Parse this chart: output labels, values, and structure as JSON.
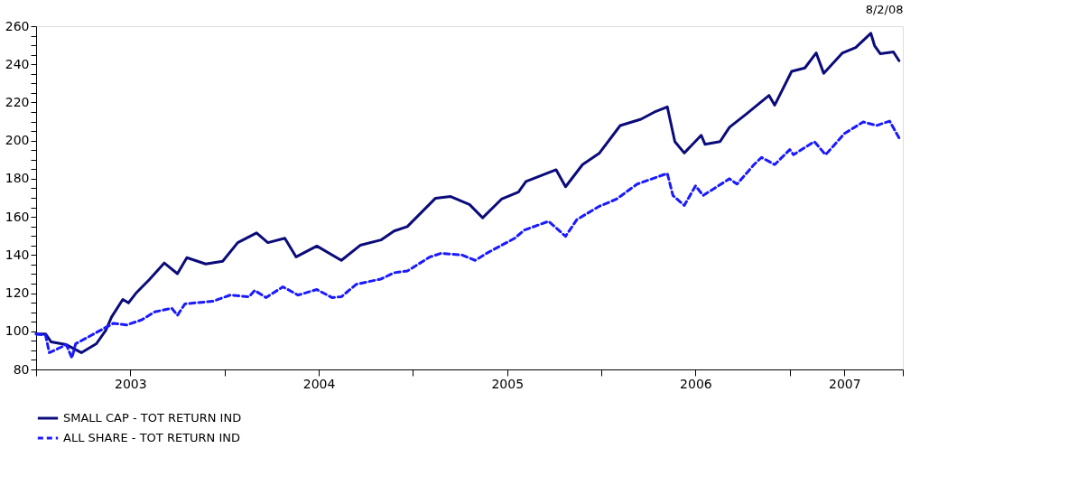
{
  "chart_data": {
    "type": "line",
    "annotations": [
      "8/2/08"
    ],
    "xlim": [
      2003,
      2007.6
    ],
    "xticks": [
      {
        "value": 2003,
        "label": null
      },
      {
        "value": 2003.5,
        "label": "2003"
      },
      {
        "value": 2004,
        "label": null
      },
      {
        "value": 2004.5,
        "label": "2004"
      },
      {
        "value": 2005,
        "label": null
      },
      {
        "value": 2005.5,
        "label": "2005"
      },
      {
        "value": 2006,
        "label": null
      },
      {
        "value": 2006.5,
        "label": "2006"
      },
      {
        "value": 2007,
        "label": null
      },
      {
        "value": 2007.29,
        "label": "2007"
      },
      {
        "value": 2007.6,
        "label": null
      }
    ],
    "ylim": [
      80,
      260
    ],
    "yticks": [
      80,
      {
        "value": 85,
        "label": null
      },
      {
        "value": 90,
        "label": null
      },
      {
        "value": 95,
        "label": null
      },
      100,
      {
        "value": 105,
        "label": null
      },
      {
        "value": 110,
        "label": null
      },
      {
        "value": 115,
        "label": null
      },
      120,
      {
        "value": 125,
        "label": null
      },
      {
        "value": 130,
        "label": null
      },
      {
        "value": 135,
        "label": null
      },
      140,
      {
        "value": 145,
        "label": null
      },
      {
        "value": 150,
        "label": null
      },
      {
        "value": 155,
        "label": null
      },
      160,
      {
        "value": 165,
        "label": null
      },
      {
        "value": 170,
        "label": null
      },
      {
        "value": 175,
        "label": null
      },
      180,
      {
        "value": 185,
        "label": null
      },
      {
        "value": 190,
        "label": null
      },
      {
        "value": 195,
        "label": null
      },
      200,
      {
        "value": 205,
        "label": null
      },
      {
        "value": 210,
        "label": null
      },
      {
        "value": 215,
        "label": null
      },
      220,
      {
        "value": 225,
        "label": null
      },
      {
        "value": 230,
        "label": null
      },
      {
        "value": 235,
        "label": null
      },
      240,
      {
        "value": 245,
        "label": null
      },
      {
        "value": 250,
        "label": null
      },
      {
        "value": 255,
        "label": null
      },
      260
    ],
    "grid": false,
    "legend": "bottom",
    "series": [
      {
        "name": "SMALL CAP - TOT RETURN IND",
        "color": "#0b0b7a",
        "line_style": "solid",
        "x": [
          2003.0,
          2003.05,
          2003.08,
          2003.16,
          2003.24,
          2003.32,
          2003.37,
          2003.4,
          2003.46,
          2003.49,
          2003.53,
          2003.6,
          2003.68,
          2003.75,
          2003.8,
          2003.9,
          2003.99,
          2004.07,
          2004.17,
          2004.23,
          2004.32,
          2004.38,
          2004.49,
          2004.62,
          2004.72,
          2004.83,
          2004.9,
          2004.97,
          2005.12,
          2005.2,
          2005.3,
          2005.37,
          2005.47,
          2005.56,
          2005.6,
          2005.76,
          2005.81,
          2005.9,
          2005.99,
          2006.1,
          2006.21,
          2006.28,
          2006.35,
          2006.39,
          2006.44,
          2006.53,
          2006.55,
          2006.63,
          2006.68,
          2006.77,
          2006.89,
          2006.92,
          2007.01,
          2007.08,
          2007.14,
          2007.18,
          2007.28,
          2007.35,
          2007.43,
          2007.45,
          2007.48,
          2007.55,
          2007.58
        ],
        "values": [
          98.6,
          98.6,
          94.4,
          93,
          88.8,
          93.5,
          100.5,
          107.4,
          116.7,
          114.9,
          120,
          127,
          135.8,
          130.2,
          138.6,
          135.3,
          136.7,
          146.5,
          151.6,
          146.5,
          148.8,
          139,
          144.7,
          137.2,
          145.1,
          147.9,
          152.6,
          154.9,
          169.8,
          170.7,
          166.5,
          159.5,
          169.3,
          173,
          178.6,
          184.7,
          175.8,
          187.4,
          193.5,
          207.9,
          211.2,
          214.9,
          217.7,
          199.5,
          193.5,
          202.8,
          198.1,
          199.5,
          207,
          214,
          223.7,
          218.6,
          236.3,
          238.1,
          246,
          235.3,
          246,
          248.8,
          256.3,
          249.8,
          245.6,
          246.5,
          241.9
        ]
      },
      {
        "name": "ALL SHARE - TOT RETURN IND",
        "color": "#1a1aff",
        "line_style": "dashed",
        "x": [
          2003.0,
          2003.05,
          2003.07,
          2003.16,
          2003.19,
          2003.21,
          2003.27,
          2003.41,
          2003.48,
          2003.56,
          2003.63,
          2003.72,
          2003.75,
          2003.79,
          2003.94,
          2004.03,
          2004.13,
          2004.16,
          2004.22,
          2004.31,
          2004.39,
          2004.49,
          2004.57,
          2004.62,
          2004.7,
          2004.83,
          2004.9,
          2004.97,
          2005.09,
          2005.15,
          2005.26,
          2005.33,
          2005.4,
          2005.54,
          2005.59,
          2005.72,
          2005.81,
          2005.87,
          2005.99,
          2006.08,
          2006.19,
          2006.35,
          2006.38,
          2006.44,
          2006.5,
          2006.54,
          2006.68,
          2006.72,
          2006.81,
          2006.85,
          2006.92,
          2007.0,
          2007.02,
          2007.13,
          2007.19,
          2007.29,
          2007.39,
          2007.46,
          2007.53,
          2007.58
        ],
        "values": [
          98.6,
          98,
          88.8,
          93,
          86,
          93.5,
          96.7,
          104.2,
          103.3,
          106,
          110.2,
          112.1,
          108.4,
          114.4,
          115.8,
          119,
          118.1,
          121.4,
          117.7,
          123.3,
          119,
          121.9,
          117.7,
          118.1,
          124.7,
          127.4,
          130.7,
          131.6,
          139,
          140.9,
          140,
          137.2,
          141.4,
          148.8,
          153,
          157.7,
          149.8,
          158.6,
          165.6,
          169.3,
          177.2,
          182.8,
          171.2,
          166,
          176.3,
          171.2,
          180,
          177.2,
          187.4,
          191.2,
          187.4,
          195.3,
          192.6,
          199.5,
          192.6,
          203.7,
          209.8,
          207.9,
          210.2,
          201.4
        ]
      }
    ]
  }
}
